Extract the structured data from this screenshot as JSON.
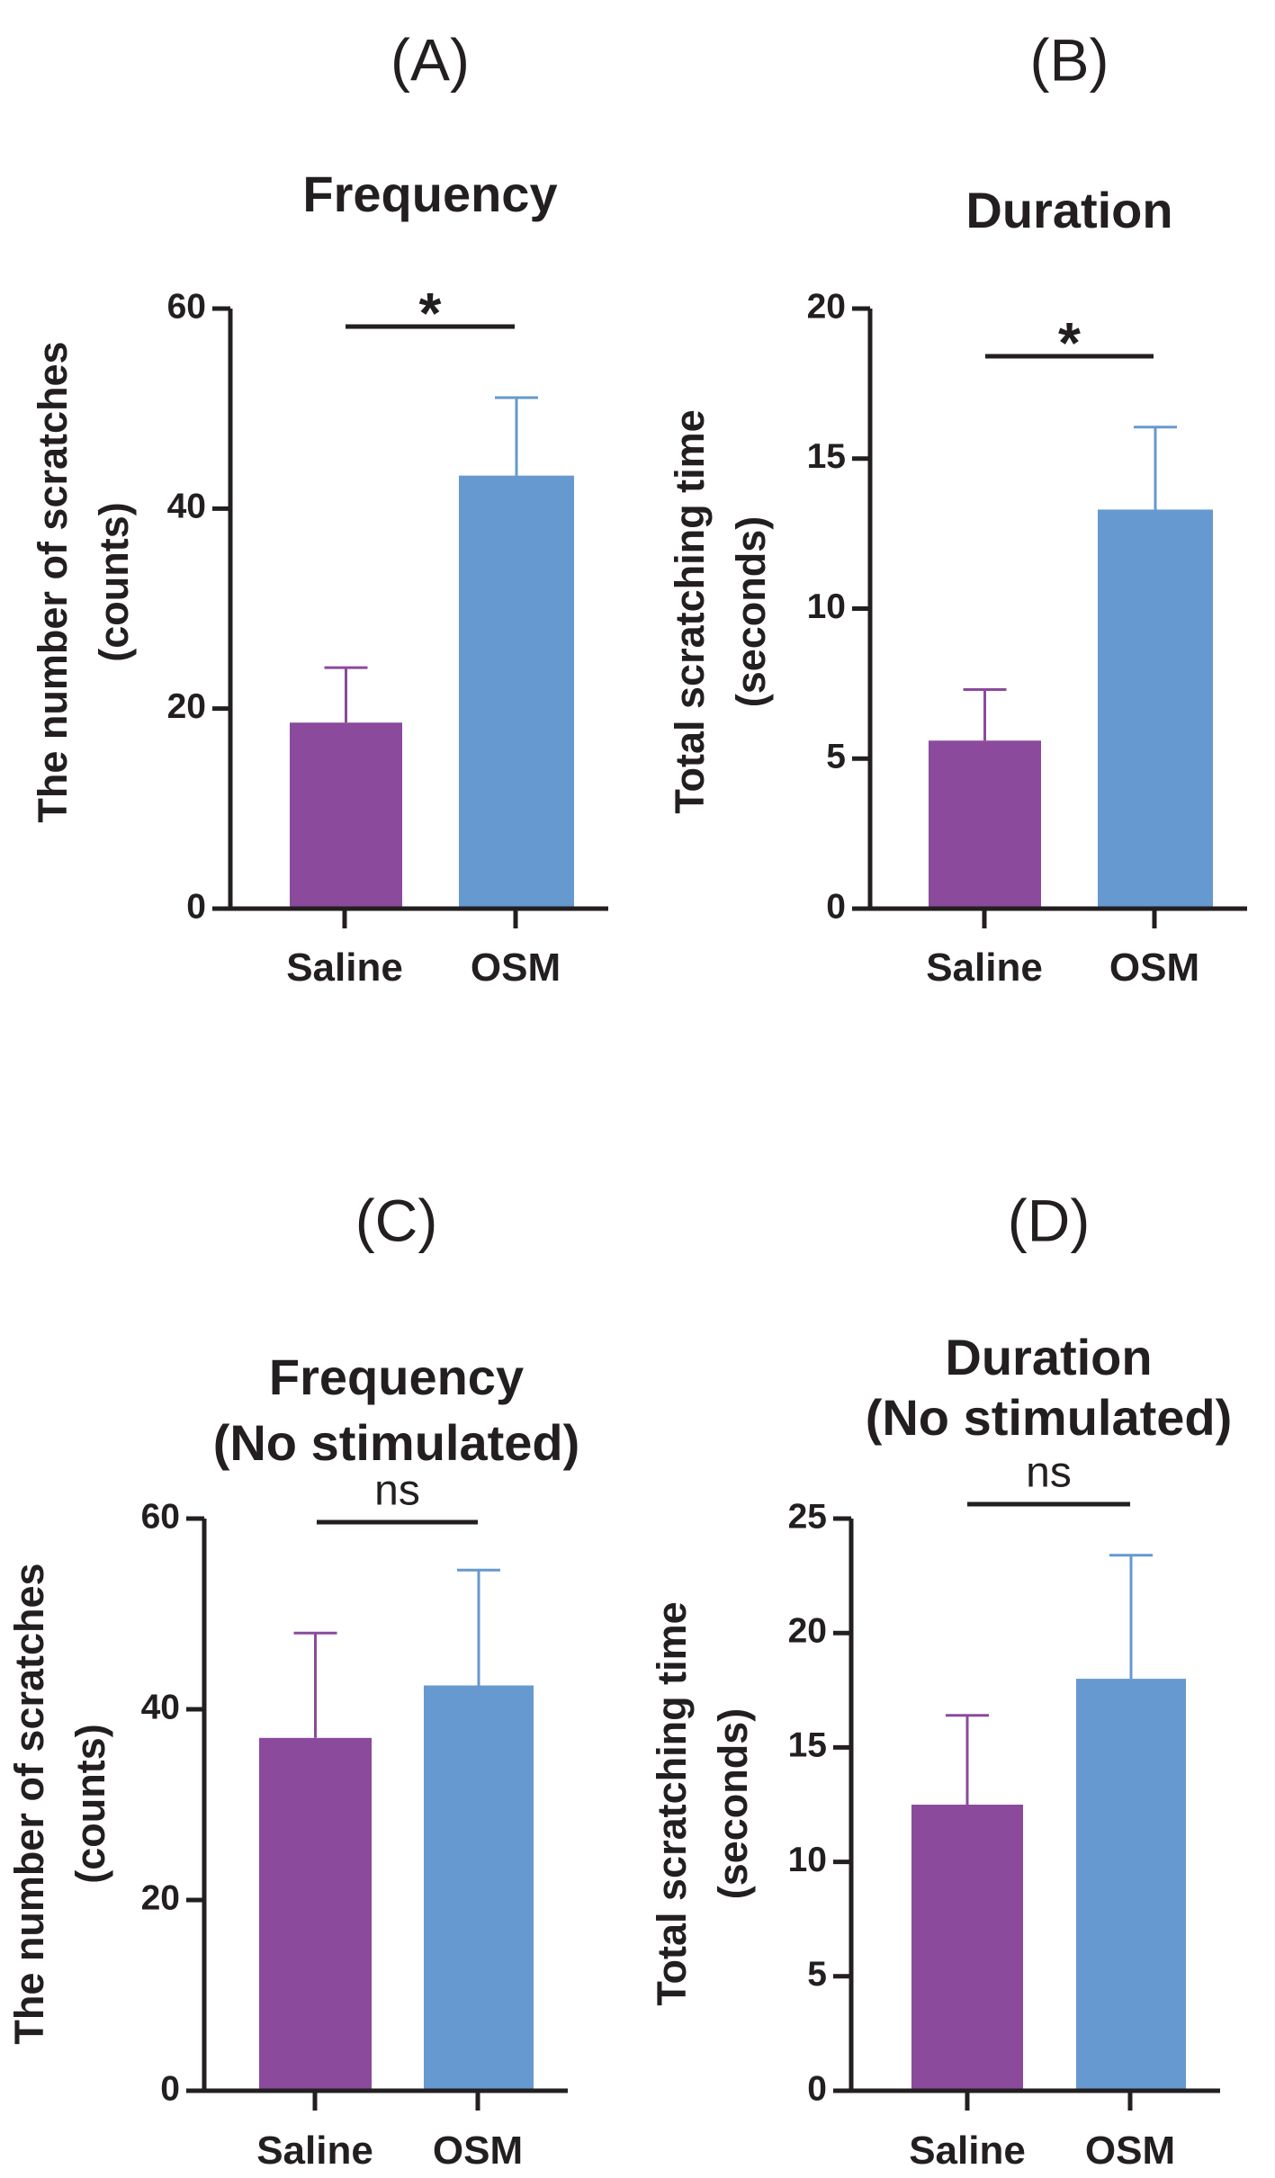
{
  "chart_data": [
    {
      "type": "bar",
      "panel": "(A)",
      "title": [
        "Frequency"
      ],
      "ylabel": [
        "The number of scratches",
        "(counts)"
      ],
      "categories": [
        "Saline",
        "OSM"
      ],
      "values": [
        18.6,
        43.3
      ],
      "errors": [
        5.5,
        7.8
      ],
      "ylim": [
        0,
        60
      ],
      "yticks": [
        0,
        20,
        40,
        60
      ],
      "significance": "*",
      "colors": [
        "#8b4a9c",
        "#6699cf"
      ]
    },
    {
      "type": "bar",
      "panel": "(B)",
      "title": [
        "Duration"
      ],
      "ylabel": [
        "Total scratching time",
        "(seconds)"
      ],
      "categories": [
        "Saline",
        "OSM"
      ],
      "values": [
        5.6,
        13.3
      ],
      "errors": [
        1.7,
        2.75
      ],
      "ylim": [
        0,
        20
      ],
      "yticks": [
        0,
        5,
        10,
        15,
        20
      ],
      "significance": "*",
      "colors": [
        "#8b4a9c",
        "#6699cf"
      ]
    },
    {
      "type": "bar",
      "panel": "(C)",
      "title": [
        "Frequency",
        "(No stimulated)"
      ],
      "ylabel": [
        "The number of scratches",
        "(counts)"
      ],
      "categories": [
        "Saline",
        "OSM"
      ],
      "values": [
        37.0,
        42.5
      ],
      "errors": [
        11.0,
        12.1
      ],
      "ylim": [
        0,
        60
      ],
      "yticks": [
        0,
        20,
        40,
        60
      ],
      "significance": "ns",
      "colors": [
        "#8b4a9c",
        "#6699cf"
      ]
    },
    {
      "type": "bar",
      "panel": "(D)",
      "title": [
        "Duration",
        "(No stimulated)"
      ],
      "ylabel": [
        "Total scratching time",
        "(seconds)"
      ],
      "categories": [
        "Saline",
        "OSM"
      ],
      "values": [
        12.5,
        18.0
      ],
      "errors": [
        3.9,
        5.4
      ],
      "ylim": [
        0,
        25
      ],
      "yticks": [
        0,
        5,
        10,
        15,
        20,
        25
      ],
      "significance": "ns",
      "colors": [
        "#8b4a9c",
        "#6699cf"
      ]
    }
  ]
}
